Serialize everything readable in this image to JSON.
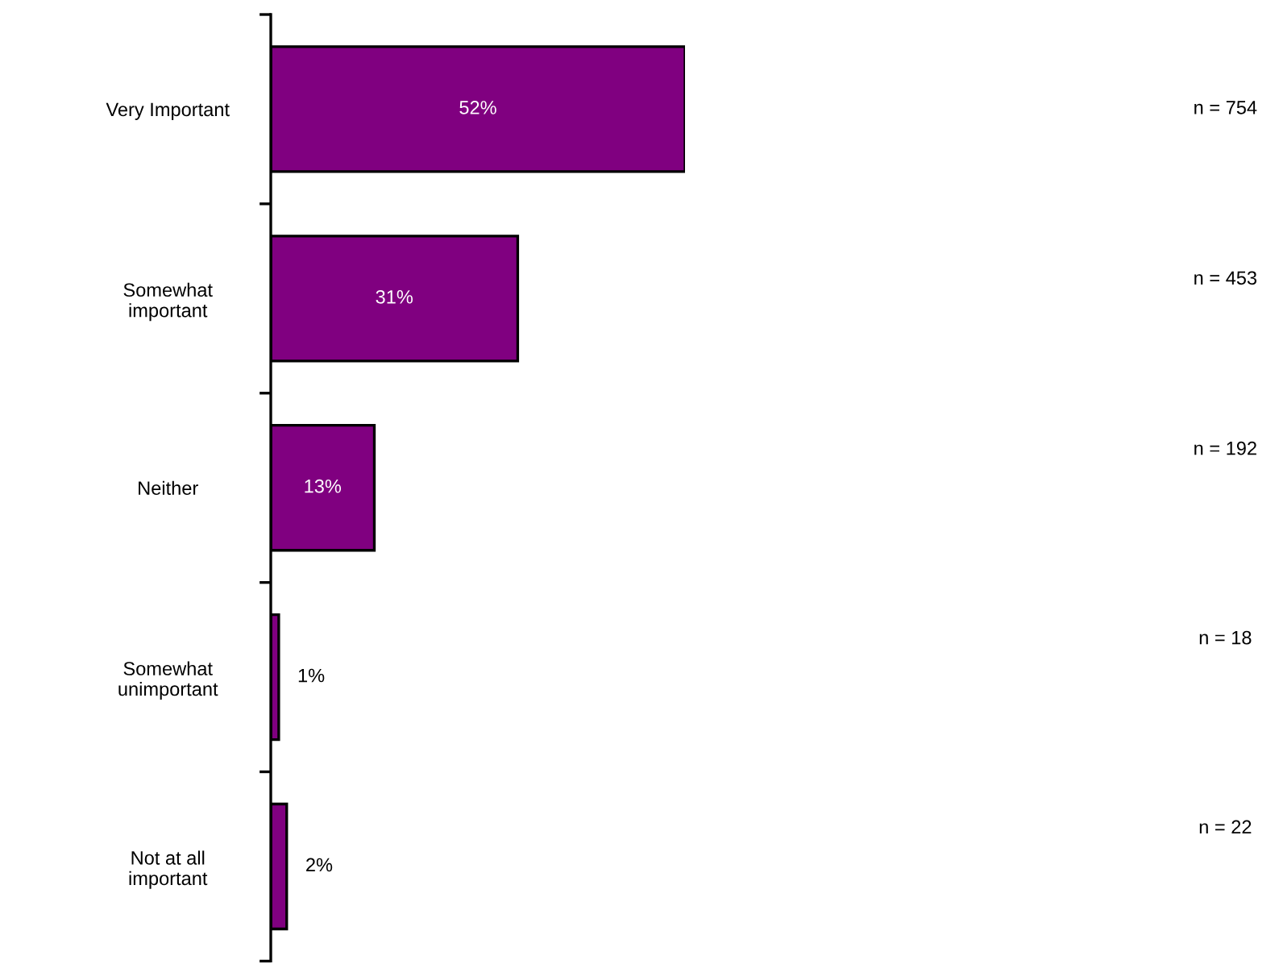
{
  "chart_data": {
    "type": "bar",
    "orientation": "horizontal",
    "categories": [
      "Very Important",
      "Somewhat\nimportant",
      "Neither",
      "Somewhat\nunimportant",
      "Not at all\nimportant"
    ],
    "values": [
      52,
      31,
      13,
      1,
      2
    ],
    "color": "#800080",
    "value_labels": [
      "52%",
      "31%",
      "13%",
      "1%",
      "2%"
    ],
    "annotations": [
      "n = 754",
      "n = 453",
      "n = 192",
      "n = 18",
      "n = 22"
    ],
    "grid": false,
    "legend": false
  }
}
